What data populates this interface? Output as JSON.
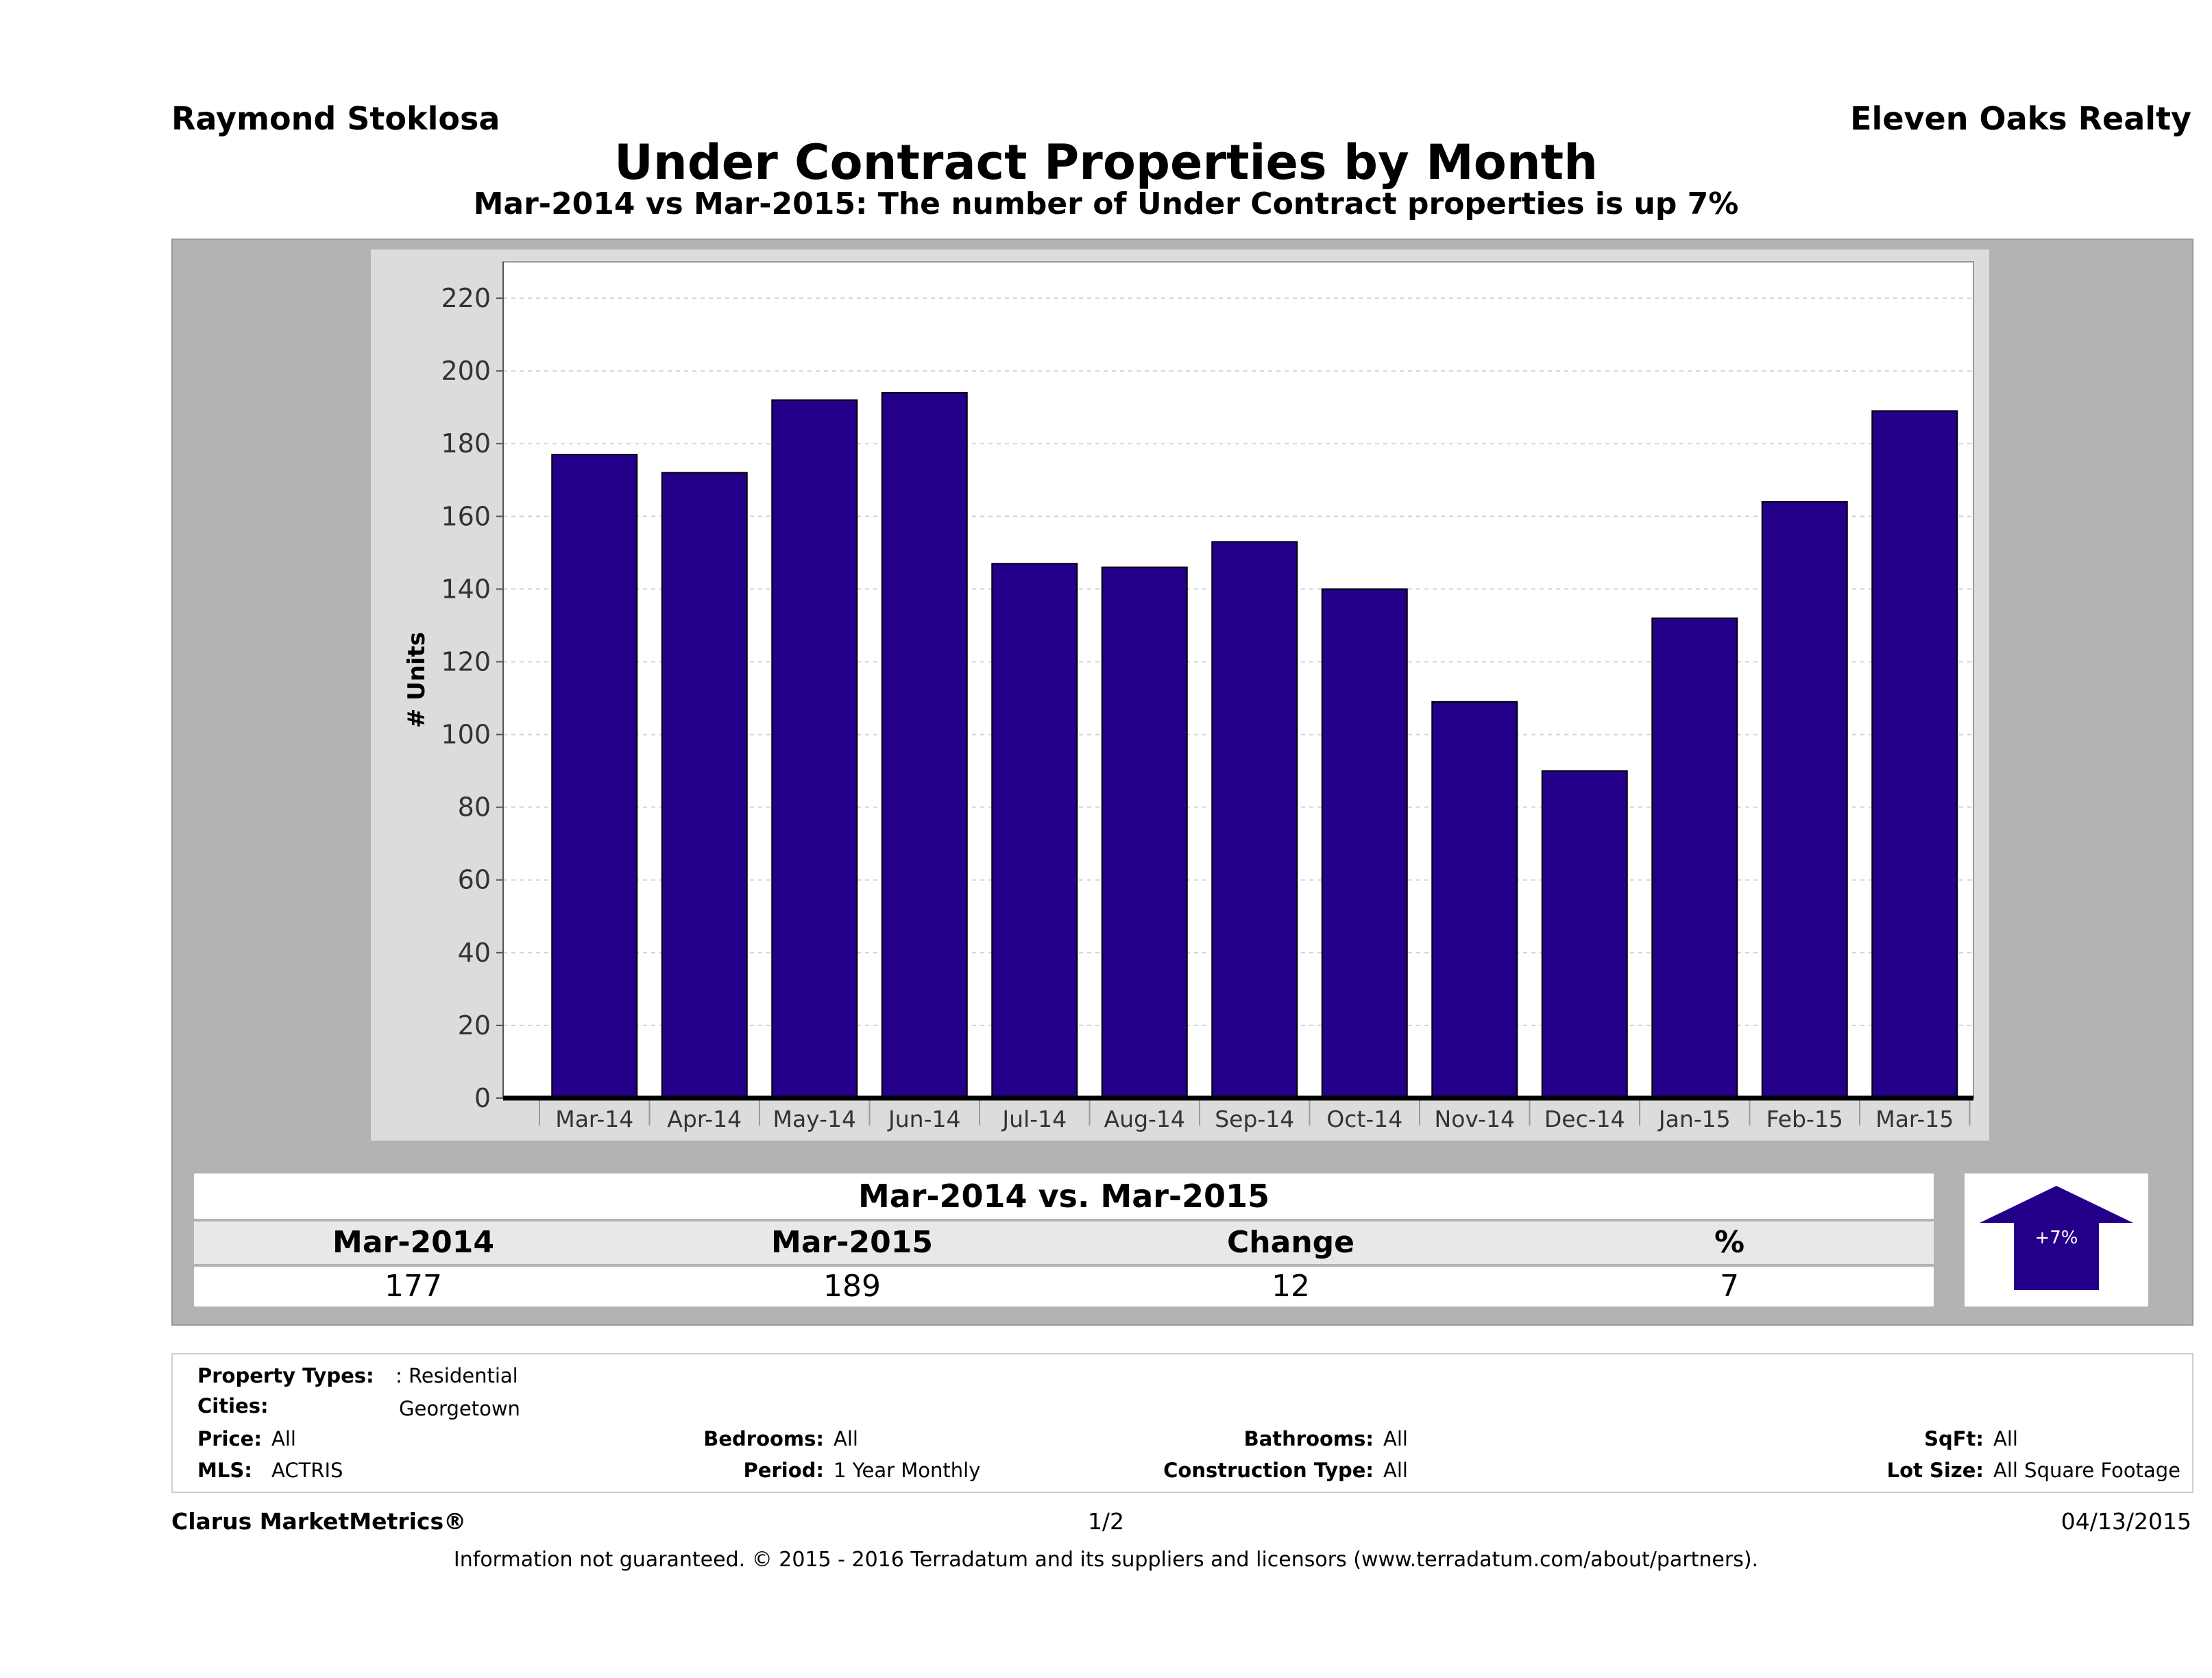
{
  "header": {
    "agent": "Raymond Stoklosa",
    "brokerage": "Eleven Oaks Realty",
    "title": "Under Contract Properties by Month",
    "subtitle": "Mar-2014 vs Mar-2015: The number of Under Contract  properties is up 7%"
  },
  "colors": {
    "bar": "#24008a",
    "frame": "#b3b3b3",
    "plot_bg": "#dcdcdc",
    "plot_inner": "#ffffff"
  },
  "chart_data": {
    "type": "bar",
    "title": "Under Contract Properties by Month",
    "ylabel": "# Units",
    "xlabel": "",
    "ylim": [
      0,
      230
    ],
    "yticks": [
      0,
      20,
      40,
      60,
      80,
      100,
      120,
      140,
      160,
      180,
      200,
      220
    ],
    "grid": true,
    "categories": [
      "Mar-14",
      "Apr-14",
      "May-14",
      "Jun-14",
      "Jul-14",
      "Aug-14",
      "Sep-14",
      "Oct-14",
      "Nov-14",
      "Dec-14",
      "Jan-15",
      "Feb-15",
      "Mar-15"
    ],
    "values": [
      177,
      172,
      192,
      194,
      147,
      146,
      153,
      140,
      109,
      90,
      132,
      164,
      189
    ]
  },
  "summary": {
    "title": "Mar-2014 vs. Mar-2015",
    "headers": [
      "Mar-2014",
      "Mar-2015",
      "Change",
      "%"
    ],
    "values": [
      "177",
      "189",
      "12",
      "7"
    ],
    "badge": "+7%",
    "badge_icon": "up-arrow-icon"
  },
  "filters": {
    "property_types_label": "Property Types:",
    "property_types_value": ": Residential",
    "cities_label": "Cities:",
    "cities_value": "Georgetown",
    "price_label": "Price:",
    "price_value": "All",
    "mls_label": "MLS:",
    "mls_value": "ACTRIS",
    "bedrooms_label": "Bedrooms:",
    "bedrooms_value": "All",
    "period_label": "Period:",
    "period_value": "1 Year Monthly",
    "bathrooms_label": "Bathrooms:",
    "bathrooms_value": "All",
    "construction_label": "Construction Type:",
    "construction_value": "All",
    "sqft_label": "SqFt:",
    "sqft_value": "All",
    "lotsize_label": "Lot Size:",
    "lotsize_value": "All Square Footage"
  },
  "footer": {
    "product": "Clarus MarketMetrics®",
    "page": "1/2",
    "date": "04/13/2015",
    "disclaimer": "Information not guaranteed. © 2015 - 2016 Terradatum and its suppliers and licensors (www.terradatum.com/about/partners)."
  }
}
